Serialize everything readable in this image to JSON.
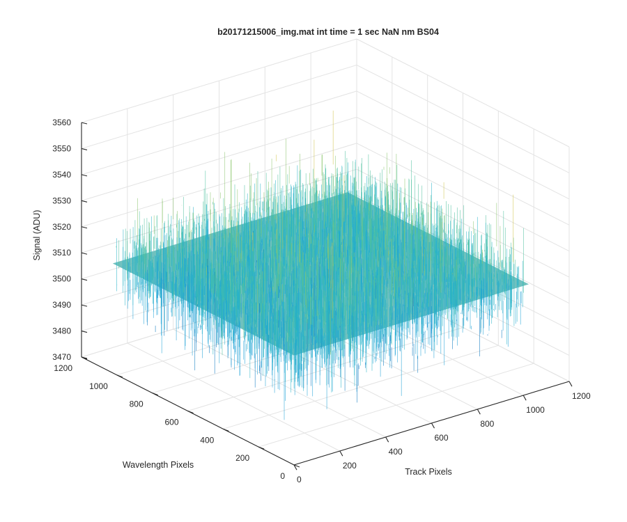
{
  "chart_data": {
    "type": "surface",
    "title": "b20171215006_img.mat int time = 1 sec  NaN nm BS04",
    "xlabel": "Track Pixels",
    "ylabel": "Wavelength Pixels",
    "zlabel": "Signal (ADU)",
    "xlim": [
      0,
      1200
    ],
    "ylim": [
      0,
      1200
    ],
    "zlim": [
      3470,
      3560
    ],
    "xticks": [
      "0",
      "200",
      "400",
      "600",
      "800",
      "1000",
      "1200"
    ],
    "yticks": [
      "0",
      "200",
      "400",
      "600",
      "800",
      "1000",
      "1200"
    ],
    "zticks": [
      "3470",
      "3480",
      "3490",
      "3500",
      "3510",
      "3520",
      "3530",
      "3540",
      "3550",
      "3560"
    ],
    "data_extent": {
      "x": [
        0,
        1024
      ],
      "y": [
        0,
        1024
      ]
    },
    "signal_mean": 3512,
    "signal_typical_range": [
      3490,
      3550
    ],
    "grid": true,
    "colormap": "parula",
    "colors": [
      "#0072bd",
      "#1a9fd6",
      "#26b3c8",
      "#4fc1a0",
      "#8cc56e",
      "#cfc44a",
      "#f2c93a"
    ]
  }
}
